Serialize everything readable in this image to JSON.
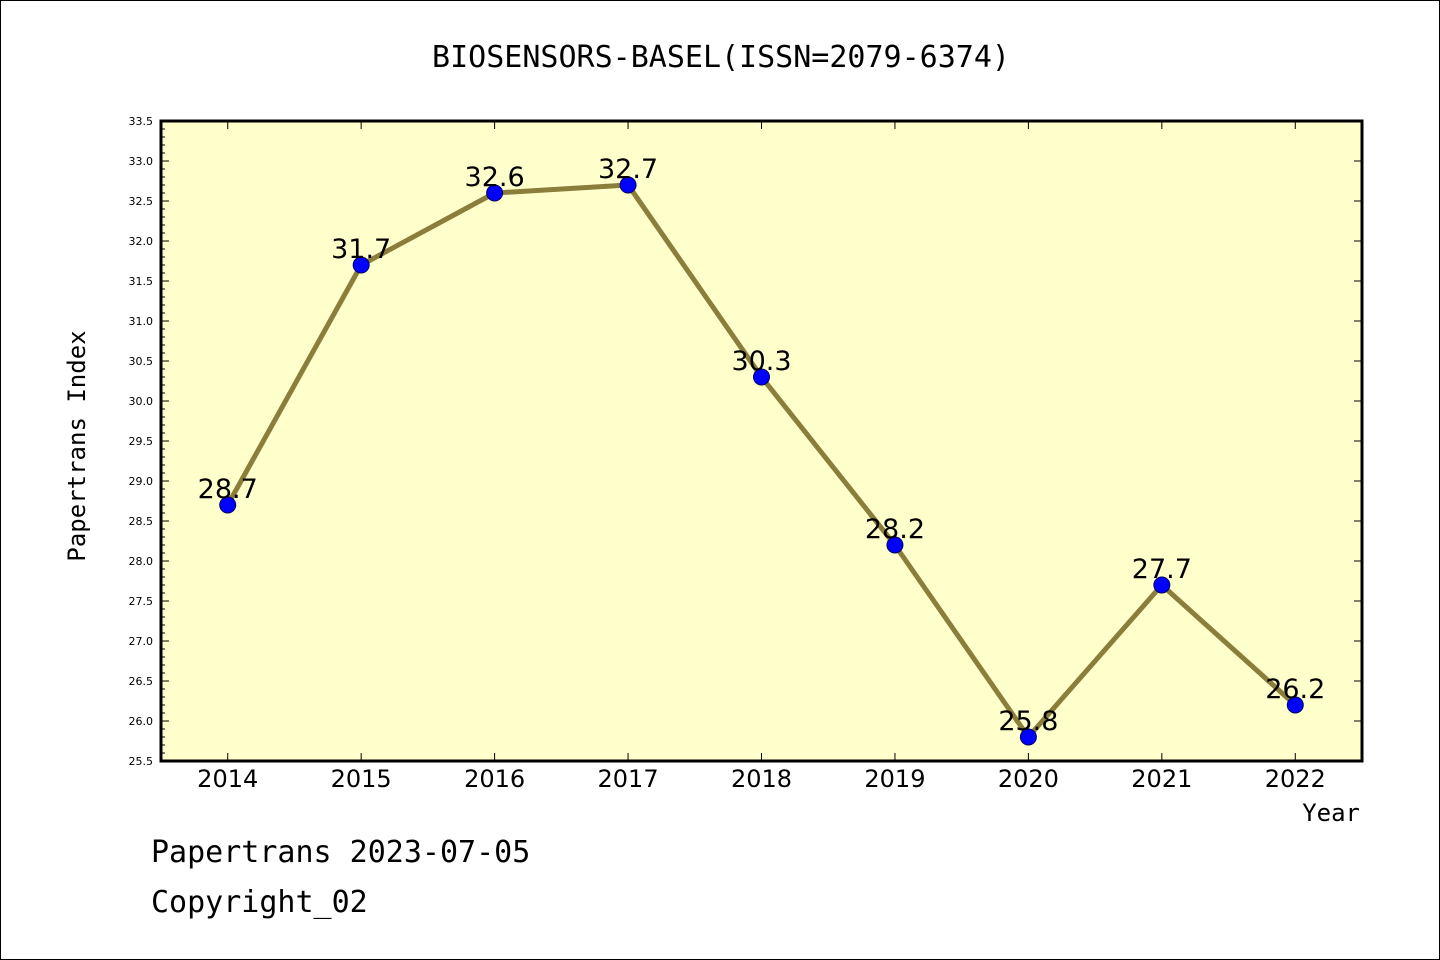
{
  "chart_data": {
    "type": "line",
    "title": "BIOSENSORS-BASEL(ISSN=2079-6374)",
    "xlabel": "Year",
    "ylabel": "Papertrans Index",
    "x": [
      "2014",
      "2015",
      "2016",
      "2017",
      "2018",
      "2019",
      "2020",
      "2021",
      "2022"
    ],
    "series": [
      {
        "values": [
          28.7,
          31.7,
          32.6,
          32.7,
          30.3,
          28.2,
          25.8,
          27.7,
          26.2
        ],
        "labels": [
          "28.7",
          "31.7",
          "32.6",
          "32.7",
          "30.3",
          "28.2",
          "25.8",
          "27.7",
          "26.2"
        ]
      }
    ],
    "ylim": [
      25.5,
      33.5
    ],
    "yticks": [
      "25.5",
      "26.0",
      "26.5",
      "27.0",
      "27.5",
      "28.0",
      "28.5",
      "29.0",
      "29.5",
      "30.0",
      "30.5",
      "31.0",
      "31.5",
      "32.0",
      "32.5",
      "33.0",
      "33.5"
    ],
    "grid": false,
    "colors": {
      "plot_background": "#ffffcc",
      "line": "#8b7d3a",
      "marker": "#0000ff"
    }
  },
  "footer": {
    "line1": "Papertrans 2023-07-05",
    "line2": "Copyright_02"
  }
}
